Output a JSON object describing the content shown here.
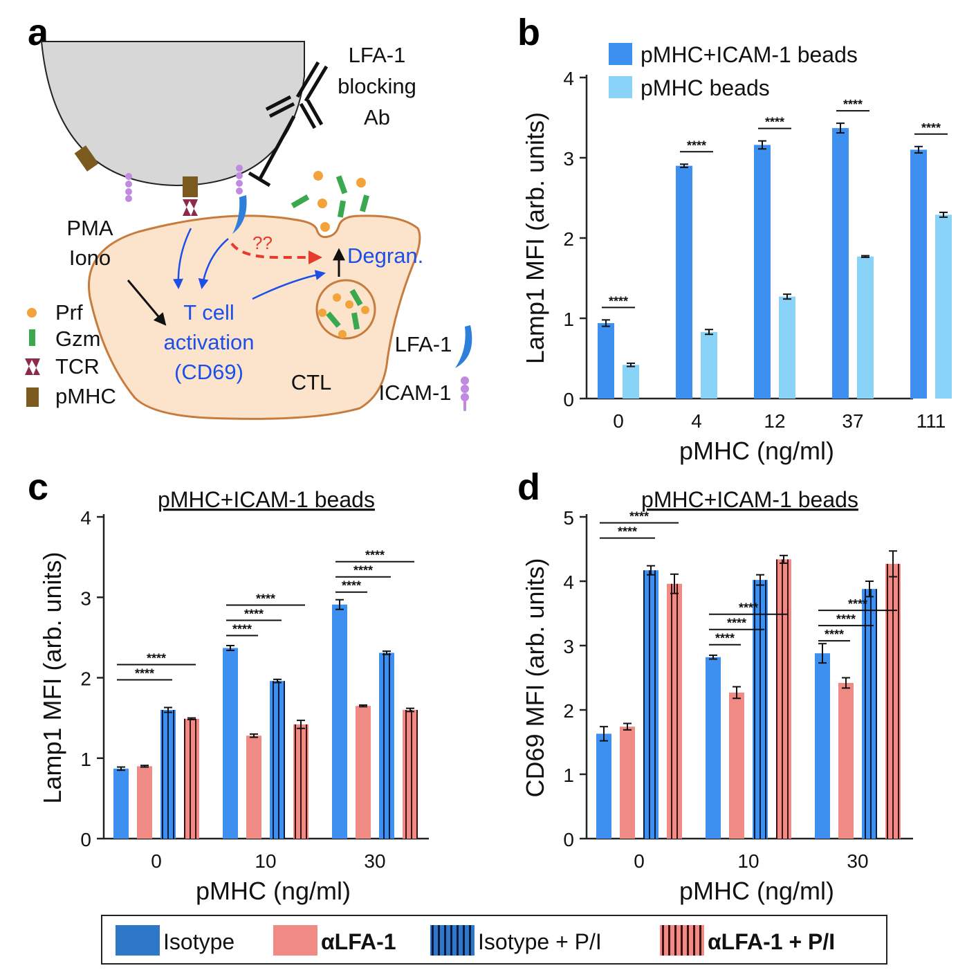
{
  "panel_labels": {
    "a": "a",
    "b": "b",
    "c": "c",
    "d": "d"
  },
  "diagram": {
    "blocking_ab": [
      "LFA-1",
      "blocking",
      "Ab"
    ],
    "pma": [
      "PMA",
      "Iono"
    ],
    "question": "??",
    "degran": "Degran.",
    "activation": [
      "T cell",
      "activation",
      "(CD69)"
    ],
    "ctl": "CTL",
    "lfa1": "LFA-1",
    "icam1": "ICAM-1",
    "key": [
      {
        "label": "Prf",
        "icon": "dot-orange"
      },
      {
        "label": "Gzm",
        "icon": "bar-green"
      },
      {
        "label": "TCR",
        "icon": "tcr-shape"
      },
      {
        "label": "pMHC",
        "icon": "pmhc-block"
      }
    ],
    "colors": {
      "cell": "#fbe3cc",
      "cell_stroke": "#c77b3c",
      "bead": "#d9d9d9",
      "blue_text": "#1b4fe8",
      "red_arrow": "#e83a2c",
      "prf": "#f2a33a",
      "gzm": "#3aa84e",
      "tcr": "#8c2a48",
      "pmhc": "#7a5a1e",
      "icam": "#c08ae0",
      "lfa": "#2e7fd9"
    }
  },
  "chart_data": [
    {
      "panel": "b",
      "type": "bar",
      "categories": [
        "0",
        "4",
        "12",
        "37",
        "111"
      ],
      "xlabel": "pMHC (ng/ml)",
      "ylabel": "Lamp1 MFI (arb. units)",
      "ylim": [
        0,
        4
      ],
      "yticks": [
        0,
        1,
        2,
        3,
        4
      ],
      "legend_position": "top-left",
      "series": [
        {
          "name": "pMHC+ICAM-1 beads",
          "color": "#3d8ff0",
          "pattern": "solid",
          "values": [
            0.94,
            2.9,
            3.16,
            3.37,
            3.1
          ],
          "errors": [
            0.04,
            0.02,
            0.05,
            0.06,
            0.04
          ]
        },
        {
          "name": "pMHC beads",
          "color": "#8ad3f8",
          "pattern": "solid",
          "values": [
            0.42,
            0.83,
            1.27,
            1.77,
            2.29
          ],
          "errors": [
            0.02,
            0.03,
            0.03,
            0.01,
            0.03
          ]
        }
      ],
      "significance": [
        {
          "category": 0,
          "from": 0,
          "to": 1,
          "label": "****"
        },
        {
          "category": 1,
          "from": 0,
          "to": 1,
          "label": "****"
        },
        {
          "category": 2,
          "from": 0,
          "to": 1,
          "label": "****"
        },
        {
          "category": 3,
          "from": 0,
          "to": 1,
          "label": "****"
        },
        {
          "category": 4,
          "from": 0,
          "to": 1,
          "label": "****"
        }
      ]
    },
    {
      "panel": "c",
      "type": "bar",
      "title": "pMHC+ICAM-1 beads",
      "categories": [
        "0",
        "10",
        "30"
      ],
      "xlabel": "pMHC (ng/ml)",
      "ylabel": "Lamp1 MFI (arb. units)",
      "ylim": [
        0,
        4
      ],
      "yticks": [
        0,
        1,
        2,
        3,
        4
      ],
      "series": [
        {
          "name": "Isotype",
          "values": [
            0.87,
            2.37,
            2.91
          ],
          "errors": [
            0.02,
            0.03,
            0.06
          ]
        },
        {
          "name": "αLFA-1",
          "values": [
            0.9,
            1.28,
            1.65
          ],
          "errors": [
            0.01,
            0.02,
            0.01
          ]
        },
        {
          "name": "Isotype + P/I",
          "values": [
            1.6,
            1.96,
            2.31
          ],
          "errors": [
            0.03,
            0.02,
            0.02
          ]
        },
        {
          "name": "αLFA-1 + P/I",
          "values": [
            1.49,
            1.42,
            1.6
          ],
          "errors": [
            0.01,
            0.05,
            0.02
          ]
        }
      ],
      "significance": [
        {
          "category": 0,
          "from": 0,
          "to": 2,
          "label": "****"
        },
        {
          "category": 0,
          "from": 0,
          "to": 3,
          "label": "****"
        },
        {
          "category": 1,
          "from": 0,
          "to": 1,
          "label": "****"
        },
        {
          "category": 1,
          "from": 0,
          "to": 2,
          "label": "****"
        },
        {
          "category": 1,
          "from": 0,
          "to": 3,
          "label": "****"
        },
        {
          "category": 2,
          "from": 0,
          "to": 1,
          "label": "****"
        },
        {
          "category": 2,
          "from": 0,
          "to": 2,
          "label": "****"
        },
        {
          "category": 2,
          "from": 0,
          "to": 3,
          "label": "****"
        }
      ]
    },
    {
      "panel": "d",
      "type": "bar",
      "title": "pMHC+ICAM-1 beads",
      "categories": [
        "0",
        "10",
        "30"
      ],
      "xlabel": "pMHC (ng/ml)",
      "ylabel": "CD69 MFI (arb. units)",
      "ylim": [
        0,
        5
      ],
      "yticks": [
        0,
        1,
        2,
        3,
        4,
        5
      ],
      "series": [
        {
          "name": "Isotype",
          "values": [
            1.63,
            2.82,
            2.88
          ],
          "errors": [
            0.11,
            0.03,
            0.15
          ]
        },
        {
          "name": "αLFA-1",
          "values": [
            1.74,
            2.27,
            2.42
          ],
          "errors": [
            0.05,
            0.09,
            0.08
          ]
        },
        {
          "name": "Isotype + P/I",
          "values": [
            4.17,
            4.02,
            3.88
          ],
          "errors": [
            0.07,
            0.08,
            0.12
          ]
        },
        {
          "name": "αLFA-1 + P/I",
          "values": [
            3.96,
            4.34,
            4.27
          ],
          "errors": [
            0.15,
            0.06,
            0.2
          ]
        }
      ],
      "significance": [
        {
          "category": 0,
          "from": 0,
          "to": 2,
          "label": "****"
        },
        {
          "category": 0,
          "from": 0,
          "to": 3,
          "label": "****"
        },
        {
          "category": 1,
          "from": 0,
          "to": 1,
          "label": "****"
        },
        {
          "category": 1,
          "from": 0,
          "to": 2,
          "label": "****"
        },
        {
          "category": 1,
          "from": 0,
          "to": 3,
          "label": "****"
        },
        {
          "category": 2,
          "from": 0,
          "to": 1,
          "label": "****"
        },
        {
          "category": 2,
          "from": 0,
          "to": 2,
          "label": "****"
        },
        {
          "category": 2,
          "from": 0,
          "to": 3,
          "label": "****"
        }
      ]
    }
  ],
  "bottom_legend": [
    {
      "label": "Isotype",
      "color": "#2f78c8",
      "pattern": "solid"
    },
    {
      "label": "αLFA-1",
      "color": "#ef8a84",
      "pattern": "solid"
    },
    {
      "label": "Isotype + P/I",
      "color": "#2f78c8",
      "pattern": "striped"
    },
    {
      "label": "αLFA-1 + P/I",
      "color": "#ef8a84",
      "pattern": "striped"
    }
  ],
  "colors": {
    "isotype": "#3d8ff0",
    "alfa": "#ef8a84",
    "isotype_pi": "#3d8ff0",
    "alfa_pi": "#ef8a84"
  }
}
